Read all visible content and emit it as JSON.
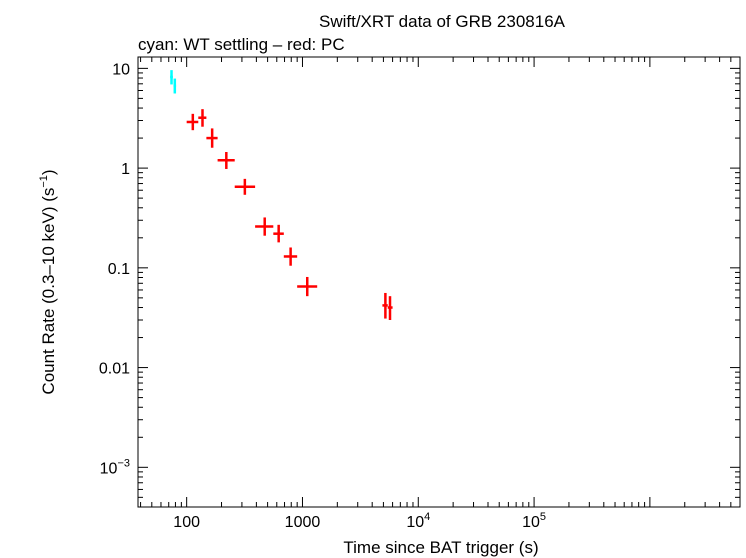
{
  "chart_data": {
    "type": "scatter",
    "title": "Swift/XRT data of GRB 230816A",
    "subtitle": "cyan: WT settling – red: PC",
    "xlabel": "Time since BAT trigger (s)",
    "ylabel": {
      "main": "Count Rate (0.3–10 keV) (s",
      "sup": "−1",
      "tail": ")"
    },
    "xscale": "log",
    "yscale": "log",
    "xlim": [
      38,
      6000000
    ],
    "ylim": [
      0.0004,
      13
    ],
    "x_ticks": [
      {
        "value": 100,
        "base": "100",
        "sup": ""
      },
      {
        "value": 1000,
        "base": "1000",
        "sup": ""
      },
      {
        "value": 10000,
        "base": "10",
        "sup": "4"
      },
      {
        "value": 100000,
        "base": "10",
        "sup": "5"
      }
    ],
    "y_ticks": [
      {
        "value": 10,
        "base": "10",
        "sup": ""
      },
      {
        "value": 1,
        "base": "1",
        "sup": ""
      },
      {
        "value": 0.1,
        "base": "0.1",
        "sup": ""
      },
      {
        "value": 0.01,
        "base": "0.01",
        "sup": ""
      },
      {
        "value": 0.001,
        "base": "10",
        "sup": "−3"
      }
    ],
    "series": [
      {
        "name": "WT settling",
        "color": "#00ffff",
        "points": [
          {
            "x": 74,
            "xlo": 72,
            "xhi": 76,
            "y": 8.2,
            "ylo": 6.9,
            "yhi": 9.6
          },
          {
            "x": 79,
            "xlo": 77,
            "xhi": 81,
            "y": 6.7,
            "ylo": 5.6,
            "yhi": 7.9
          }
        ]
      },
      {
        "name": "PC",
        "color": "#ff0000",
        "points": [
          {
            "x": 113,
            "xlo": 100,
            "xhi": 126,
            "y": 2.9,
            "ylo": 2.4,
            "yhi": 3.5
          },
          {
            "x": 137,
            "xlo": 126,
            "xhi": 148,
            "y": 3.2,
            "ylo": 2.6,
            "yhi": 3.9
          },
          {
            "x": 166,
            "xlo": 148,
            "xhi": 185,
            "y": 2.0,
            "ylo": 1.6,
            "yhi": 2.5
          },
          {
            "x": 220,
            "xlo": 185,
            "xhi": 260,
            "y": 1.2,
            "ylo": 0.98,
            "yhi": 1.45
          },
          {
            "x": 318,
            "xlo": 260,
            "xhi": 390,
            "y": 0.65,
            "ylo": 0.54,
            "yhi": 0.78
          },
          {
            "x": 472,
            "xlo": 390,
            "xhi": 560,
            "y": 0.26,
            "ylo": 0.21,
            "yhi": 0.32
          },
          {
            "x": 623,
            "xlo": 560,
            "xhi": 690,
            "y": 0.22,
            "ylo": 0.18,
            "yhi": 0.27
          },
          {
            "x": 790,
            "xlo": 690,
            "xhi": 900,
            "y": 0.13,
            "ylo": 0.105,
            "yhi": 0.16
          },
          {
            "x": 1100,
            "xlo": 900,
            "xhi": 1340,
            "y": 0.065,
            "ylo": 0.052,
            "yhi": 0.081
          },
          {
            "x": 5200,
            "xlo": 4900,
            "xhi": 5450,
            "y": 0.042,
            "ylo": 0.031,
            "yhi": 0.056
          },
          {
            "x": 5700,
            "xlo": 5450,
            "xhi": 6000,
            "y": 0.04,
            "ylo": 0.03,
            "yhi": 0.052
          }
        ]
      }
    ]
  }
}
